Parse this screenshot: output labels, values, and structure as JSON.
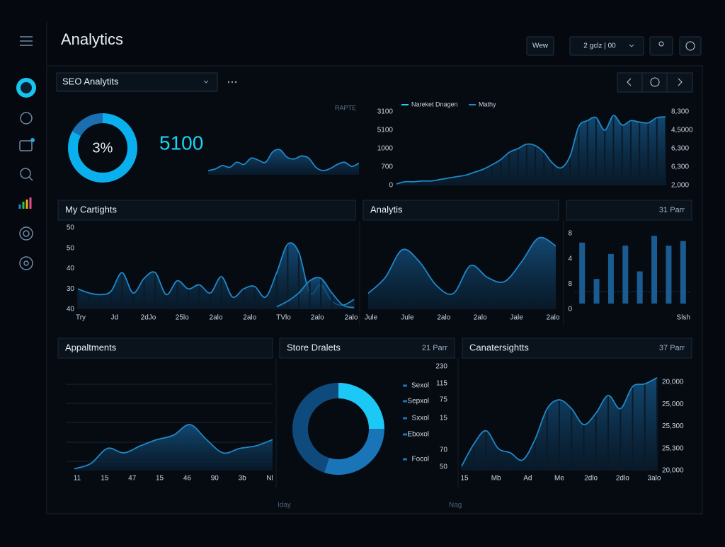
{
  "header": {
    "title": "Analytics",
    "buttons": [
      "Wew",
      "2 gclz | 00"
    ]
  },
  "toolbar": {
    "dropdown": "SEO Analytits"
  },
  "footer": [
    "Iday",
    "Nag"
  ],
  "chart_data": [
    {
      "type": "kpi",
      "label": "3%",
      "value": 5100,
      "note": "RAPTE",
      "ylim": [
        0,
        100
      ],
      "series": [
        {
          "color": "#1e88c8",
          "values": [
            10,
            14,
            22,
            18,
            30,
            25,
            40,
            35,
            30,
            55,
            60,
            42,
            38,
            45,
            40,
            18,
            10,
            15,
            25,
            30,
            20,
            28
          ]
        }
      ]
    },
    {
      "type": "area",
      "ylim": [
        0,
        100
      ],
      "legend": [
        {
          "name": "Nareket Dnagen",
          "color": "#19d3f5"
        },
        {
          "name": "Mathy",
          "color": "#1e88c8"
        }
      ],
      "left_labels": [
        "3100",
        "5100",
        "1000",
        "700",
        "0"
      ],
      "right_labels": [
        "8,300",
        "4,5000",
        "6,300",
        "6,300",
        "2,000"
      ],
      "series": [
        {
          "color": "#1e88c8",
          "values": [
            2,
            5,
            5,
            6,
            6,
            8,
            10,
            12,
            14,
            18,
            22,
            28,
            35,
            45,
            50,
            56,
            54,
            45,
            30,
            24,
            40,
            80,
            88,
            92,
            75,
            95,
            82,
            88,
            86,
            85,
            92,
            93
          ]
        }
      ]
    },
    {
      "type": "area",
      "title": "My Cartights",
      "ylim": [
        0,
        100
      ],
      "left_labels": [
        "50",
        "50",
        "40",
        "30",
        "40"
      ],
      "x_labels": [
        "Try",
        "Jd",
        "2dJo",
        "25lo",
        "2alo",
        "2alo",
        "TVlo",
        "2alo",
        "2alo"
      ],
      "series": [
        {
          "color": "#1e88c8",
          "values": [
            25,
            20,
            18,
            22,
            45,
            20,
            38,
            45,
            18,
            35,
            25,
            30,
            20,
            40,
            15,
            25,
            28,
            15,
            45,
            80,
            70,
            20,
            30,
            10,
            5,
            12
          ]
        },
        {
          "color": "#1e88c8",
          "values": [
            null,
            null,
            null,
            null,
            null,
            null,
            null,
            null,
            null,
            null,
            null,
            null,
            null,
            null,
            null,
            null,
            null,
            null,
            3,
            10,
            20,
            35,
            38,
            20,
            5,
            2
          ]
        }
      ]
    },
    {
      "type": "area",
      "title": "Analytis",
      "ylim": [
        0,
        100
      ],
      "x_labels": [
        "Jule",
        "Jule",
        "2alo",
        "2alo",
        "Jale",
        "2alo"
      ],
      "series": [
        {
          "color": "#1e88c8",
          "values": [
            20,
            40,
            75,
            60,
            30,
            20,
            55,
            40,
            35,
            60,
            90,
            80
          ]
        }
      ]
    },
    {
      "type": "bar",
      "title": "31 Parr",
      "ylim": [
        0,
        100
      ],
      "left_labels": [
        "8",
        "4",
        "8",
        "0"
      ],
      "x_labels": [
        "Slsh"
      ],
      "color": "#1a5c92",
      "values": [
        88,
        40,
        73,
        84,
        50,
        97,
        84,
        90
      ]
    },
    {
      "type": "area",
      "title": "Appaltments",
      "ylim": [
        0,
        100
      ],
      "x_labels": [
        "11",
        "15",
        "47",
        "15",
        "46",
        "90",
        "3b",
        "Nl"
      ],
      "series": [
        {
          "color": "#1e88c8",
          "values": [
            2,
            8,
            25,
            20,
            28,
            35,
            40,
            52,
            35,
            20,
            25,
            28,
            35
          ]
        }
      ]
    },
    {
      "type": "donut",
      "title": "Store Dralets",
      "subtitle": "21 Parr",
      "legend_labels": [
        "Sexol",
        "Sepxol",
        "Sxxol",
        "Eboxol",
        "Focol"
      ],
      "numbers": [
        "230",
        "115",
        "75",
        "15",
        "70",
        "50"
      ],
      "values": [
        25,
        30,
        45
      ],
      "colors": [
        "#1cc8f5",
        "#1a74b8",
        "#0e4a7c"
      ]
    },
    {
      "type": "combo",
      "title": "Canatersightts",
      "subtitle": "37 Parr",
      "ylim": [
        0,
        100
      ],
      "right_labels": [
        "20,000",
        "25,000",
        "25,300",
        "25,300",
        "20,000"
      ],
      "x_labels": [
        "15",
        "Mb",
        "Ad",
        "Me",
        "2dlo",
        "2dlo",
        "3alo"
      ],
      "series": [
        {
          "color": "#1e88c8",
          "values": [
            5,
            30,
            45,
            25,
            20,
            12,
            35,
            70,
            80,
            70,
            52,
            65,
            85,
            70,
            95,
            98,
            105
          ]
        }
      ]
    }
  ]
}
